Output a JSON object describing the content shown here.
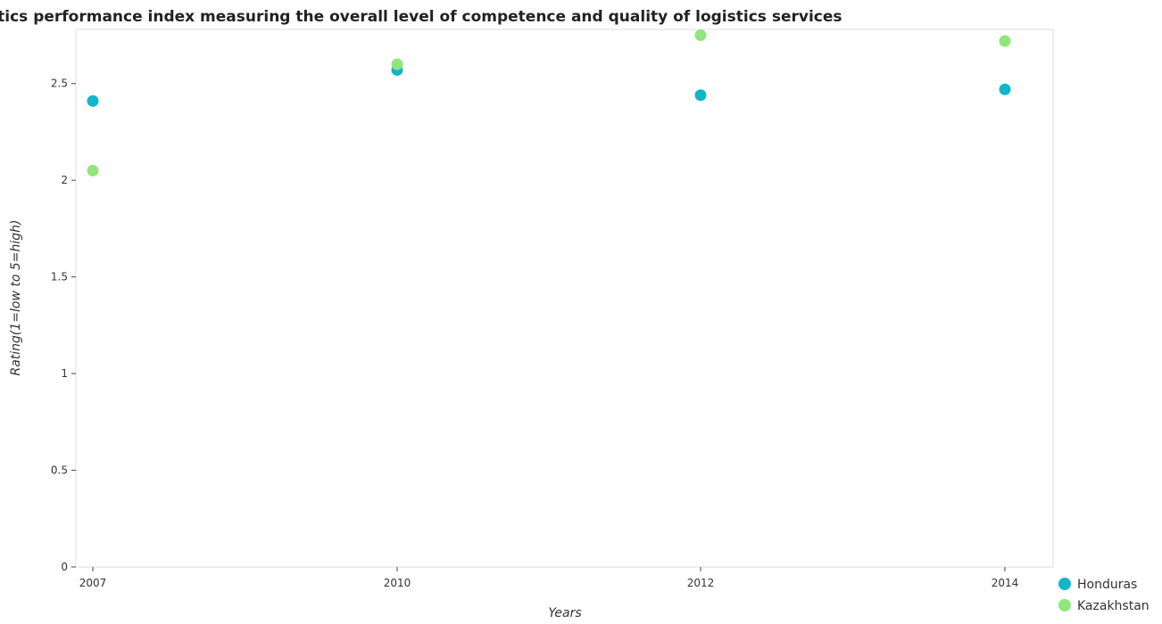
{
  "chart_data": {
    "type": "scatter",
    "title": "Logistics performance index measuring the overall level of competence and quality of logistics services",
    "xlabel": "Years",
    "ylabel": "Rating(1=low to 5=high)",
    "categories": [
      "2007",
      "2010",
      "2012",
      "2014"
    ],
    "ylim": [
      0,
      2.78
    ],
    "yticks": [
      0,
      0.5,
      1,
      1.5,
      2,
      2.5
    ],
    "ytick_labels": [
      "0",
      "0.5",
      "1",
      "1.5",
      "2",
      "2.5"
    ],
    "grid": false,
    "legend_position": "bottom-right",
    "series": [
      {
        "name": "Honduras",
        "color": "#13b5c8",
        "values": [
          2.41,
          2.57,
          2.44,
          2.47
        ]
      },
      {
        "name": "Kazakhstan",
        "color": "#90e57c",
        "values": [
          2.05,
          2.6,
          2.75,
          2.72
        ]
      }
    ]
  }
}
